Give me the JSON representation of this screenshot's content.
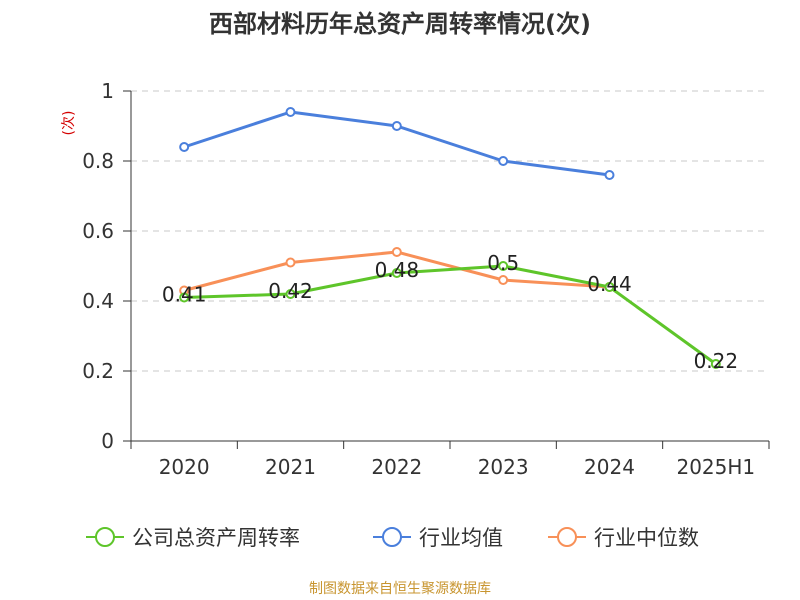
{
  "chart_data": {
    "type": "line",
    "title": "西部材料历年总资产周转率情况(次)",
    "ylabel": "(次)",
    "ylim": [
      0,
      1
    ],
    "yticks": [
      "0",
      "0.2",
      "0.4",
      "0.6",
      "0.8",
      "1"
    ],
    "categories": [
      "2020",
      "2021",
      "2022",
      "2023",
      "2024",
      "2025H1"
    ],
    "grid": true,
    "legend_position": "bottom",
    "series": [
      {
        "name": "公司总资产周转率",
        "color": "#5ec52a",
        "values": [
          0.41,
          0.42,
          0.48,
          0.5,
          0.44,
          0.22
        ],
        "labels": [
          "0.41",
          "0.42",
          "0.48",
          "0.5",
          "0.44",
          "0.22"
        ]
      },
      {
        "name": "行业均值",
        "color": "#4a7fdc",
        "values": [
          0.84,
          0.94,
          0.9,
          0.8,
          0.76,
          null
        ]
      },
      {
        "name": "行业中位数",
        "color": "#f89058",
        "values": [
          0.43,
          0.51,
          0.54,
          0.46,
          0.44,
          null
        ]
      }
    ],
    "source": "制图数据来自恒生聚源数据库"
  }
}
